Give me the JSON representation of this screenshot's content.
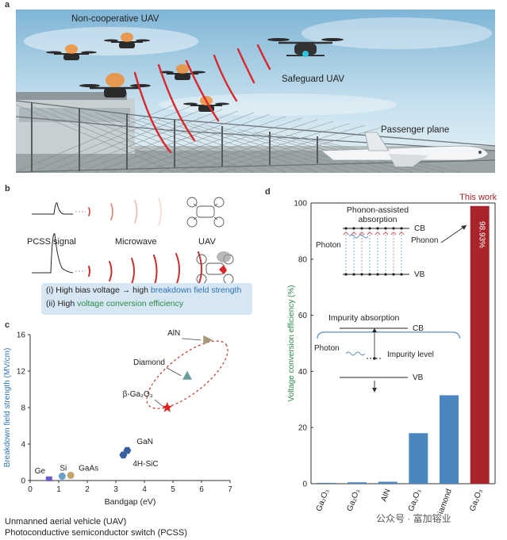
{
  "panels": {
    "a": {
      "label": "a",
      "labels": {
        "non_cooperative": "Non-cooperative UAV",
        "safeguard": "Safeguard UAV",
        "plane": "Passenger plane"
      }
    },
    "b": {
      "label": "b",
      "pcss_signal": "PCSS signal",
      "microwave": "Microwave",
      "uav": "UAV",
      "line1_prefix": "(i) High bias voltage → high ",
      "line1_highlight": "breakdown field strength",
      "line2_prefix": "(ii) High ",
      "line2_highlight": "voltage conversion efficiency"
    },
    "c": {
      "label": "c"
    },
    "d": {
      "label": "d",
      "this_work": "This work",
      "value_label": "98.93%",
      "inset1": {
        "title_line1": "Phonon-assisted",
        "title_line2": "absorption",
        "cb": "CB",
        "vb": "VB",
        "photon": "Photon",
        "phonon": "Phonon"
      },
      "inset2": {
        "title": "Impurity absorption",
        "cb": "CB",
        "vb": "VB",
        "photon": "Photon",
        "impurity": "Impurity level"
      }
    }
  },
  "footer": {
    "line1": "Unmanned aerial vehicle (UAV)",
    "line2": "Photoconductive semiconductor switch (PCSS)"
  },
  "watermark": "公众号 · 富加镕业",
  "colors": {
    "bar_blue": "#4a86c0",
    "bar_red": "#a8232a",
    "ylabel_blue": "#2f73b6",
    "ylabel_green": "#2c8a4a",
    "accent_red": "#c0392b"
  },
  "chart_data": [
    {
      "type": "scatter",
      "xlabel": "Bandgap (eV)",
      "ylabel": "Breakdown field strength (MV/cm)",
      "xlim": [
        0,
        7
      ],
      "ylim": [
        0,
        16
      ],
      "xticks": [
        0,
        1,
        2,
        3,
        4,
        5,
        6,
        7
      ],
      "yticks": [
        0,
        4,
        8,
        12,
        16
      ],
      "points": [
        {
          "label": "Ge",
          "x": 0.66,
          "y": 0.1
        },
        {
          "label": "Si",
          "x": 1.12,
          "y": 0.3
        },
        {
          "label": "GaAs",
          "x": 1.42,
          "y": 0.4
        },
        {
          "label": "GaN",
          "x": 3.4,
          "y": 3.3
        },
        {
          "label": "4H-SiC",
          "x": 3.26,
          "y": 2.8
        },
        {
          "label": "β-Ga₂O₃",
          "x": 4.8,
          "y": 8.0
        },
        {
          "label": "Diamond",
          "x": 5.5,
          "y": 11.5
        },
        {
          "label": "AlN",
          "x": 6.2,
          "y": 15.4
        }
      ]
    },
    {
      "type": "bar",
      "ylabel": "Voltage conversion efficiency (%)",
      "ylim": [
        0,
        100
      ],
      "yticks": [
        0,
        20,
        40,
        60,
        80,
        100
      ],
      "categories": [
        "Ga₂O₃",
        "Ga₂O₃",
        "AlN",
        "Ga₂O₃",
        "Diamond",
        "Ga₂O₃"
      ],
      "values": [
        0.3,
        0.5,
        0.7,
        18.0,
        31.5,
        98.93
      ]
    }
  ]
}
